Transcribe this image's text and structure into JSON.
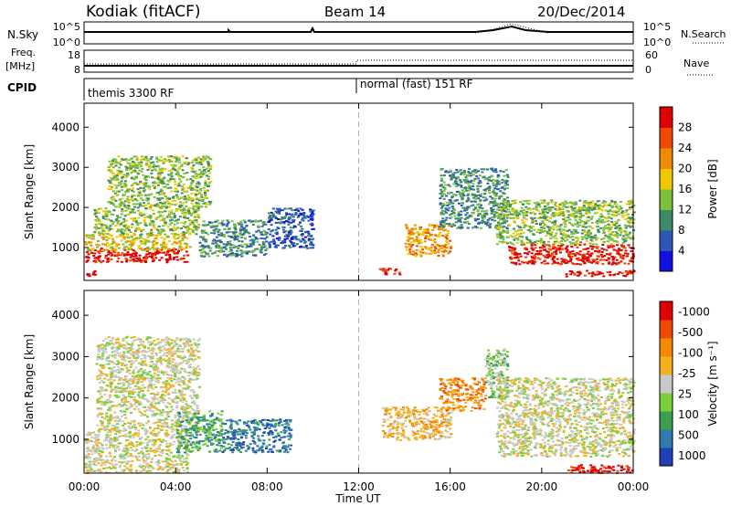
{
  "header": {
    "station": "Kodiak (fitACF)",
    "beam": "Beam 14",
    "date": "20/Dec/2014"
  },
  "top_panels": {
    "nsky_label": "N.Sky",
    "nsky_ticks": [
      "10^5",
      "10^0"
    ],
    "nsearch_label": "N.Search",
    "nsearch_ticks": [
      "10^5",
      "10^0"
    ],
    "freq_label_1": "Freq.",
    "freq_label_2": "[MHz]",
    "freq_ticks": [
      "18",
      "8"
    ],
    "nave_label": "Nave",
    "nave_ticks": [
      "60",
      "0"
    ],
    "cpid_label": "CPID",
    "cpid_modes": [
      "themis 3300 RF",
      "normal (fast) 151 RF"
    ]
  },
  "x_axis": {
    "label": "Time UT",
    "ticks": [
      "00:00",
      "04:00",
      "08:00",
      "12:00",
      "16:00",
      "20:00",
      "00:00"
    ]
  },
  "chart_data": [
    {
      "type": "heatmap",
      "title": "Power",
      "ylabel": "Slant Range [km]",
      "ylim": [
        180,
        4600
      ],
      "yticks": [
        1000,
        2000,
        3000,
        4000
      ],
      "xlabel": "Time UT",
      "xlim_hours": [
        0,
        24
      ],
      "colorbar": {
        "label": "Power [dB]",
        "levels": [
          "4",
          "8",
          "12",
          "16",
          "20",
          "24",
          "28"
        ],
        "colors": [
          "#1010e0",
          "#2b58b8",
          "#3c8a68",
          "#7ac03c",
          "#f0c800",
          "#f08a00",
          "#f04a00",
          "#e00000"
        ]
      },
      "regions": [
        {
          "t0": 0.0,
          "t1": 0.5,
          "r0": 300,
          "r1": 450,
          "level": 8
        },
        {
          "t0": 0.0,
          "t1": 4.5,
          "r0": 650,
          "r1": 1000,
          "level": 7
        },
        {
          "t0": 0.0,
          "t1": 4.6,
          "r0": 950,
          "r1": 1350,
          "level": 4
        },
        {
          "t0": 0.4,
          "t1": 5.0,
          "r0": 1350,
          "r1": 2000,
          "level": 3
        },
        {
          "t0": 1.0,
          "t1": 5.5,
          "r0": 2000,
          "r1": 3300,
          "level": 3
        },
        {
          "t0": 5.0,
          "t1": 8.0,
          "r0": 800,
          "r1": 1700,
          "level": 2
        },
        {
          "t0": 8.0,
          "t1": 10.0,
          "r0": 1000,
          "r1": 2000,
          "level": 1
        },
        {
          "t0": 12.8,
          "t1": 13.8,
          "r0": 350,
          "r1": 500,
          "level": 7
        },
        {
          "t0": 14.0,
          "t1": 16.0,
          "r0": 800,
          "r1": 1600,
          "level": 5
        },
        {
          "t0": 15.5,
          "t1": 18.5,
          "r0": 1500,
          "r1": 3000,
          "level": 2
        },
        {
          "t0": 18.5,
          "t1": 24.0,
          "r0": 600,
          "r1": 1100,
          "level": 7
        },
        {
          "t0": 18.0,
          "t1": 24.0,
          "r0": 1100,
          "r1": 2200,
          "level": 3
        },
        {
          "t0": 21.0,
          "t1": 24.0,
          "r0": 300,
          "r1": 450,
          "level": 7
        }
      ]
    },
    {
      "type": "heatmap",
      "title": "Velocity",
      "ylabel": "Slant Range [km]",
      "ylim": [
        180,
        4600
      ],
      "yticks": [
        1000,
        2000,
        3000,
        4000
      ],
      "xlabel": "Time UT",
      "xlim_hours": [
        0,
        24
      ],
      "colorbar": {
        "label": "Velocity [m s⁻¹]",
        "levels": [
          "1000",
          "500",
          "100",
          "25",
          "-25",
          "-100",
          "-500",
          "-1000"
        ],
        "colors": [
          "#2040b8",
          "#307ab0",
          "#3aa050",
          "#7ad03c",
          "#c8c8c8",
          "#f5b020",
          "#f58a00",
          "#f04a00",
          "#e00000"
        ]
      },
      "regions": [
        {
          "t0": 0.0,
          "t1": 4.5,
          "r0": 200,
          "r1": 1200,
          "level": 4
        },
        {
          "t0": 0.5,
          "t1": 5.0,
          "r0": 1200,
          "r1": 3500,
          "level": 4
        },
        {
          "t0": 4.0,
          "t1": 6.0,
          "r0": 700,
          "r1": 1700,
          "level": 2
        },
        {
          "t0": 6.0,
          "t1": 9.0,
          "r0": 700,
          "r1": 1500,
          "level": 1
        },
        {
          "t0": 13.0,
          "t1": 16.0,
          "r0": 1000,
          "r1": 1800,
          "level": 5
        },
        {
          "t0": 15.5,
          "t1": 17.5,
          "r0": 1700,
          "r1": 2500,
          "level": 6
        },
        {
          "t0": 17.5,
          "t1": 18.5,
          "r0": 2000,
          "r1": 3200,
          "level": 3
        },
        {
          "t0": 18.0,
          "t1": 24.0,
          "r0": 600,
          "r1": 2500,
          "level": 4
        },
        {
          "t0": 21.0,
          "t1": 24.0,
          "r0": 200,
          "r1": 400,
          "level": 8
        }
      ]
    }
  ],
  "colors": {
    "axis": "#000000",
    "noon_line": "#b0b0b0"
  }
}
